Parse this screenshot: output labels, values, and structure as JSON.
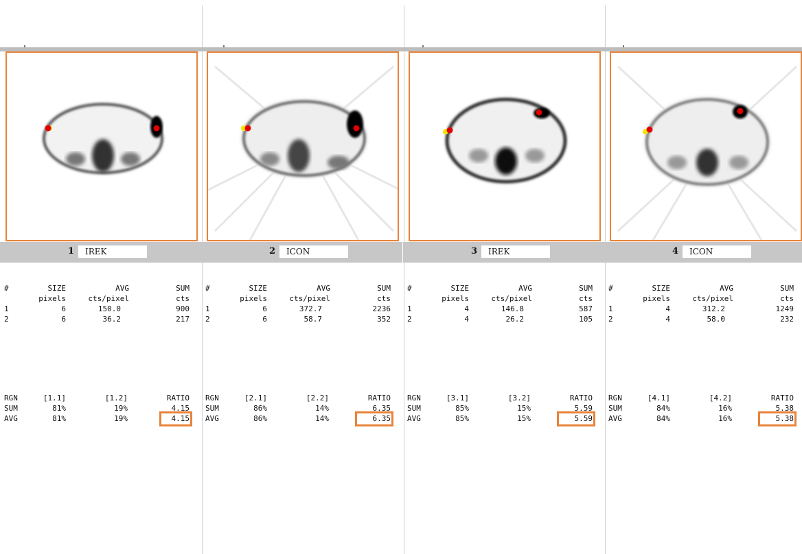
{
  "panels": [
    {
      "num": "1",
      "name": "IREK",
      "hdr": [
        "#",
        "SIZE",
        "AVG",
        "SUM"
      ],
      "sub": [
        "pixels",
        "cts/pixel",
        "cts"
      ],
      "rows": [
        {
          "id": "1",
          "size": "6",
          "avg": "150.0",
          "sum": "900"
        },
        {
          "id": "2",
          "size": "6",
          "avg": "36.2",
          "sum": "217"
        }
      ],
      "rhdr": [
        "RGN",
        "[1.1]",
        "[1.2]",
        "RATIO"
      ],
      "rrows": [
        {
          "lab": "SUM",
          "a": "81%",
          "b": "19%",
          "ratio": "4.15"
        },
        {
          "lab": "AVG",
          "a": "81%",
          "b": "19%",
          "ratio": "4.15"
        }
      ]
    },
    {
      "num": "2",
      "name": "ICON",
      "hdr": [
        "#",
        "SIZE",
        "AVG",
        "SUM"
      ],
      "sub": [
        "pixels",
        "cts/pixel",
        "cts"
      ],
      "rows": [
        {
          "id": "1",
          "size": "6",
          "avg": "372.7",
          "sum": "2236"
        },
        {
          "id": "2",
          "size": "6",
          "avg": "58.7",
          "sum": "352"
        }
      ],
      "rhdr": [
        "RGN",
        "[2.1]",
        "[2.2]",
        "RATIO"
      ],
      "rrows": [
        {
          "lab": "SUM",
          "a": "86%",
          "b": "14%",
          "ratio": "6.35"
        },
        {
          "lab": "AVG",
          "a": "86%",
          "b": "14%",
          "ratio": "6.35"
        }
      ]
    },
    {
      "num": "3",
      "name": "IREK",
      "hdr": [
        "#",
        "SIZE",
        "AVG",
        "SUM"
      ],
      "sub": [
        "pixels",
        "cts/pixel",
        "cts"
      ],
      "rows": [
        {
          "id": "1",
          "size": "4",
          "avg": "146.8",
          "sum": "587"
        },
        {
          "id": "2",
          "size": "4",
          "avg": "26.2",
          "sum": "105"
        }
      ],
      "rhdr": [
        "RGN",
        "[3.1]",
        "[3.2]",
        "RATIO"
      ],
      "rrows": [
        {
          "lab": "SUM",
          "a": "85%",
          "b": "15%",
          "ratio": "5.59"
        },
        {
          "lab": "AVG",
          "a": "85%",
          "b": "15%",
          "ratio": "5.59"
        }
      ]
    },
    {
      "num": "4",
      "name": "ICON",
      "hdr": [
        "#",
        "SIZE",
        "AVG",
        "SUM"
      ],
      "sub": [
        "pixels",
        "cts/pixel",
        "cts"
      ],
      "rows": [
        {
          "id": "1",
          "size": "4",
          "avg": "312.2",
          "sum": "1249"
        },
        {
          "id": "2",
          "size": "4",
          "avg": "58.0",
          "sum": "232"
        }
      ],
      "rhdr": [
        "RGN",
        "[4.1]",
        "[4.2]",
        "RATIO"
      ],
      "rrows": [
        {
          "lab": "SUM",
          "a": "84%",
          "b": "16%",
          "ratio": "5.38"
        },
        {
          "lab": "AVG",
          "a": "84%",
          "b": "16%",
          "ratio": "5.38"
        }
      ]
    }
  ],
  "colors": {
    "accent": "#e8833a",
    "roi_red": "#e00000",
    "roi_yellow": "#f5e600"
  }
}
